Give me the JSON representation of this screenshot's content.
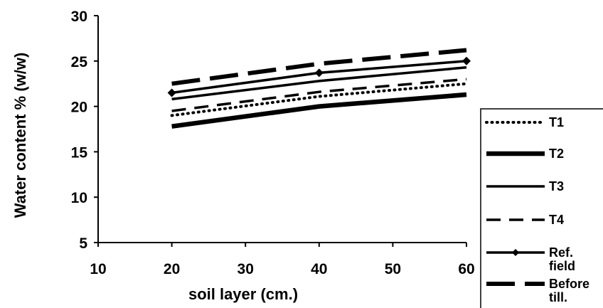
{
  "chart_data": {
    "type": "line",
    "title": "",
    "xlabel": "soil layer (cm.)",
    "ylabel": "Water content % (w/w)",
    "xlim": [
      10,
      60
    ],
    "ylim": [
      5,
      30
    ],
    "x_ticks": [
      10,
      20,
      30,
      40,
      50,
      60
    ],
    "y_ticks": [
      5,
      10,
      15,
      20,
      25,
      30
    ],
    "grid": false,
    "legend_position": "bottom-right",
    "x": [
      20,
      40,
      60
    ],
    "series": [
      {
        "name": "T1",
        "values": [
          19.0,
          21.1,
          22.5
        ],
        "style": "dotted",
        "color": "#000000"
      },
      {
        "name": "T2",
        "values": [
          17.8,
          20.0,
          21.3
        ],
        "style": "solid-thick",
        "color": "#000000"
      },
      {
        "name": "T3",
        "values": [
          20.8,
          22.8,
          24.3
        ],
        "style": "solid",
        "color": "#000000"
      },
      {
        "name": "T4",
        "values": [
          19.5,
          21.6,
          23.0
        ],
        "style": "dashed",
        "color": "#000000"
      },
      {
        "name": "Ref. field",
        "label_lines": [
          "Ref.",
          "field"
        ],
        "values": [
          21.5,
          23.7,
          25.0
        ],
        "style": "solid-marker",
        "color": "#000000"
      },
      {
        "name": "Before till.",
        "label_lines": [
          "Before",
          "till."
        ],
        "values": [
          22.5,
          24.7,
          26.2
        ],
        "style": "long-dash",
        "color": "#000000"
      }
    ]
  }
}
